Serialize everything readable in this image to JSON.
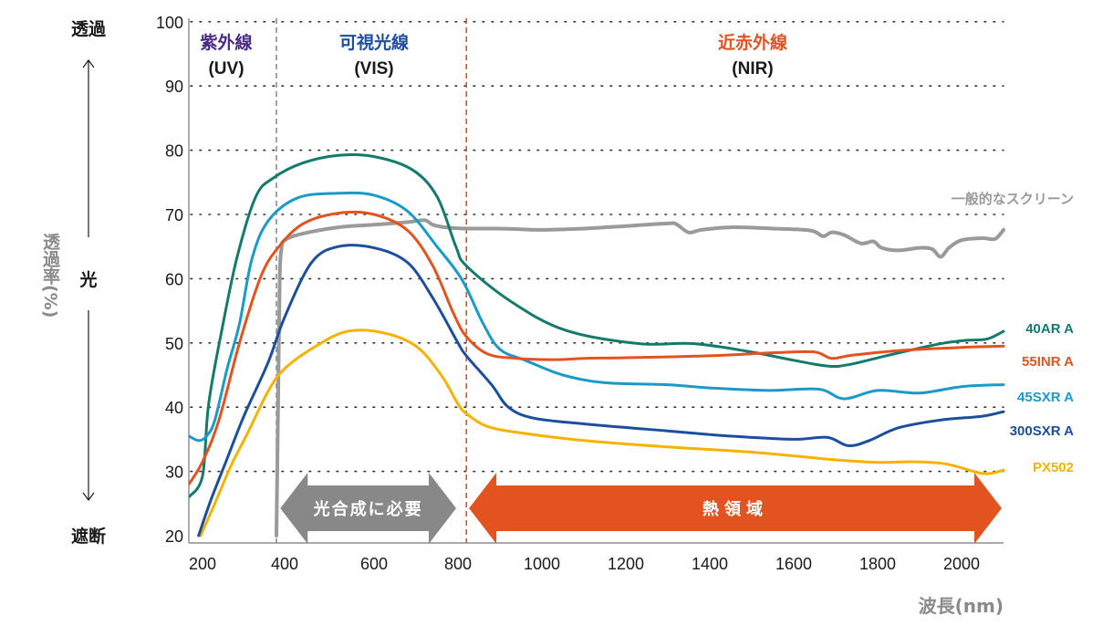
{
  "chart_data": {
    "type": "line",
    "title": "",
    "xlabel": "波長(nm)",
    "ylabel": "透過率(%)",
    "xlim": [
      165,
      2100
    ],
    "ylim": [
      20,
      100
    ],
    "x_ticks": [
      200,
      400,
      600,
      800,
      1000,
      1200,
      1400,
      1600,
      1800,
      2000
    ],
    "y_ticks": [
      20,
      30,
      40,
      50,
      60,
      70,
      80,
      90,
      100
    ],
    "grid": "horizontal dotted",
    "side_labels": {
      "top": "透過",
      "middle": "光",
      "bottom": "遮断"
    },
    "regions": [
      {
        "name": "紫外線",
        "sub": "(UV)",
        "color": "#4a2a86",
        "range": [
          165,
          380
        ]
      },
      {
        "name": "可視光線",
        "sub": "(VIS)",
        "color": "#1f4e9c",
        "range": [
          380,
          820
        ]
      },
      {
        "name": "近赤外線",
        "sub": "(NIR)",
        "color": "#e35320",
        "range": [
          820,
          2100
        ]
      }
    ],
    "boundaries": [
      {
        "x": 380,
        "color": "#8c8c8c"
      },
      {
        "x": 820,
        "color": "#e35320"
      }
    ],
    "bands": [
      {
        "label": "光合成に必要",
        "range": [
          385,
          800
        ],
        "color": "#888888"
      },
      {
        "label": "熱領域",
        "range": [
          822,
          2100
        ],
        "color": "#e35320"
      }
    ],
    "series": [
      {
        "name": "40AR A",
        "color": "#137a6c",
        "points": [
          [
            165,
            26
          ],
          [
            200,
            29.3
          ],
          [
            215,
            40.6
          ],
          [
            250,
            53
          ],
          [
            285,
            63.6
          ],
          [
            330,
            72.8
          ],
          [
            373,
            75.7
          ],
          [
            440,
            78
          ],
          [
            520,
            79.2
          ],
          [
            600,
            79
          ],
          [
            690,
            77
          ],
          [
            750,
            72.8
          ],
          [
            795,
            65
          ],
          [
            820,
            62
          ],
          [
            925,
            56.5
          ],
          [
            1055,
            52
          ],
          [
            1230,
            49.9
          ],
          [
            1360,
            49.9
          ],
          [
            1490,
            48.7
          ],
          [
            1600,
            47.3
          ],
          [
            1680,
            46.4
          ],
          [
            1730,
            46.6
          ],
          [
            1820,
            48
          ],
          [
            1900,
            49.2
          ],
          [
            1960,
            50
          ],
          [
            2010,
            50.4
          ],
          [
            2060,
            50.6
          ],
          [
            2100,
            51.8
          ]
        ]
      },
      {
        "name": "55INR A",
        "color": "#e35320",
        "points": [
          [
            165,
            28
          ],
          [
            200,
            31.5
          ],
          [
            240,
            38
          ],
          [
            290,
            50
          ],
          [
            340,
            60
          ],
          [
            380,
            64.5
          ],
          [
            440,
            68.5
          ],
          [
            520,
            70.2
          ],
          [
            600,
            70
          ],
          [
            680,
            67.5
          ],
          [
            740,
            62
          ],
          [
            790,
            54.5
          ],
          [
            820,
            51
          ],
          [
            870,
            48.3
          ],
          [
            940,
            47.6
          ],
          [
            1040,
            47.4
          ],
          [
            1100,
            47.6
          ],
          [
            1200,
            47.7
          ],
          [
            1400,
            48
          ],
          [
            1560,
            48.5
          ],
          [
            1650,
            48.6
          ],
          [
            1690,
            47.6
          ],
          [
            1740,
            48.1
          ],
          [
            1850,
            48.8
          ],
          [
            2000,
            49.3
          ],
          [
            2100,
            49.5
          ]
        ]
      },
      {
        "name": "45SXR A",
        "color": "#1a9ac9",
        "points": [
          [
            165,
            35.5
          ],
          [
            190,
            34.8
          ],
          [
            210,
            35.5
          ],
          [
            230,
            38
          ],
          [
            260,
            46
          ],
          [
            290,
            53
          ],
          [
            320,
            63
          ],
          [
            360,
            69
          ],
          [
            430,
            72.6
          ],
          [
            520,
            73.3
          ],
          [
            600,
            73
          ],
          [
            680,
            70.5
          ],
          [
            750,
            65
          ],
          [
            810,
            59.8
          ],
          [
            860,
            53
          ],
          [
            900,
            49
          ],
          [
            960,
            47.3
          ],
          [
            1050,
            45
          ],
          [
            1150,
            43.8
          ],
          [
            1300,
            43.5
          ],
          [
            1400,
            43
          ],
          [
            1540,
            42.6
          ],
          [
            1660,
            42.8
          ],
          [
            1720,
            41.3
          ],
          [
            1800,
            42.6
          ],
          [
            1900,
            42.2
          ],
          [
            2000,
            43.2
          ],
          [
            2100,
            43.5
          ]
        ]
      },
      {
        "name": "300SXR A",
        "color": "#1c4e9e",
        "points": [
          [
            190,
            20
          ],
          [
            220,
            25.5
          ],
          [
            260,
            32
          ],
          [
            300,
            38.5
          ],
          [
            360,
            47
          ],
          [
            400,
            54
          ],
          [
            460,
            62.5
          ],
          [
            520,
            65
          ],
          [
            600,
            64.8
          ],
          [
            680,
            62.5
          ],
          [
            740,
            57
          ],
          [
            800,
            50
          ],
          [
            820,
            48
          ],
          [
            880,
            43.5
          ],
          [
            920,
            40
          ],
          [
            980,
            38.3
          ],
          [
            1100,
            37.4
          ],
          [
            1300,
            36.3
          ],
          [
            1450,
            35.5
          ],
          [
            1600,
            35
          ],
          [
            1680,
            35.3
          ],
          [
            1730,
            34
          ],
          [
            1780,
            34.8
          ],
          [
            1850,
            36.8
          ],
          [
            1950,
            38
          ],
          [
            2050,
            38.6
          ],
          [
            2100,
            39.3
          ]
        ]
      },
      {
        "name": "PX502",
        "color": "#f5b300",
        "points": [
          [
            195,
            20
          ],
          [
            230,
            25
          ],
          [
            270,
            31
          ],
          [
            310,
            36
          ],
          [
            360,
            42.5
          ],
          [
            400,
            46
          ],
          [
            470,
            49.5
          ],
          [
            540,
            51.8
          ],
          [
            620,
            51.6
          ],
          [
            700,
            49.5
          ],
          [
            760,
            45
          ],
          [
            800,
            40.5
          ],
          [
            820,
            39
          ],
          [
            870,
            37
          ],
          [
            950,
            36
          ],
          [
            1100,
            34.8
          ],
          [
            1300,
            33.8
          ],
          [
            1500,
            33
          ],
          [
            1700,
            31.8
          ],
          [
            1800,
            31.4
          ],
          [
            1880,
            31.5
          ],
          [
            1960,
            31.2
          ],
          [
            2040,
            29.8
          ],
          [
            2070,
            29.7
          ],
          [
            2100,
            30.2
          ]
        ]
      },
      {
        "name": "一般的なスクリーン",
        "color": "#9a9a9a",
        "points": [
          [
            380,
            20
          ],
          [
            384,
            40
          ],
          [
            388,
            60
          ],
          [
            392,
            64.5
          ],
          [
            400,
            66
          ],
          [
            440,
            67
          ],
          [
            520,
            68
          ],
          [
            600,
            68.4
          ],
          [
            680,
            68.8
          ],
          [
            720,
            69.1
          ],
          [
            740,
            68.4
          ],
          [
            770,
            68
          ],
          [
            820,
            67.8
          ],
          [
            900,
            67.8
          ],
          [
            1000,
            67.6
          ],
          [
            1100,
            67.8
          ],
          [
            1200,
            68.2
          ],
          [
            1300,
            68.6
          ],
          [
            1320,
            68.5
          ],
          [
            1350,
            67.2
          ],
          [
            1380,
            67.6
          ],
          [
            1450,
            68
          ],
          [
            1550,
            67.8
          ],
          [
            1640,
            67.5
          ],
          [
            1670,
            66.6
          ],
          [
            1690,
            67.2
          ],
          [
            1720,
            66.8
          ],
          [
            1760,
            65.5
          ],
          [
            1790,
            65.8
          ],
          [
            1810,
            64.8
          ],
          [
            1850,
            64.4
          ],
          [
            1900,
            64.8
          ],
          [
            1930,
            64.6
          ],
          [
            1950,
            63.4
          ],
          [
            1970,
            64.8
          ],
          [
            2000,
            66
          ],
          [
            2050,
            66.3
          ],
          [
            2080,
            66.2
          ],
          [
            2100,
            67.6
          ]
        ]
      }
    ]
  }
}
